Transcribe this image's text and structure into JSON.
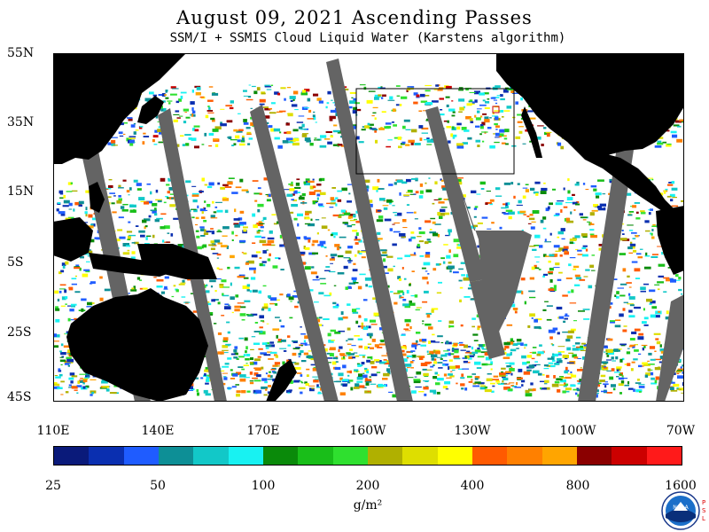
{
  "title": "August 09, 2021  Ascending Passes",
  "subtitle": "SSM/I + SSMIS Cloud Liquid Water (Karstens algorithm)",
  "lat_labels": [
    "55N",
    "35N",
    "15N",
    "5S",
    "25S",
    "45S"
  ],
  "lon_labels": [
    "110E",
    "140E",
    "170E",
    "160W",
    "130W",
    "100W",
    "70W"
  ],
  "colorbar": {
    "tick_labels": [
      "25",
      "50",
      "100",
      "200",
      "400",
      "800",
      "1600"
    ],
    "units": "g/m²",
    "colors": [
      "#0a1a7a",
      "#0a2fb0",
      "#1f5cff",
      "#0d8f96",
      "#12c8c8",
      "#18f2f2",
      "#0a8a0a",
      "#19be19",
      "#2fe02f",
      "#b0b000",
      "#dede00",
      "#ffff00",
      "#ff5a00",
      "#ff8000",
      "#ffa500",
      "#8b0000",
      "#cc0000",
      "#ff1a1a"
    ]
  },
  "map": {
    "land_color": "#000000",
    "ocean_color": "#ffffff",
    "gap_color": "#646464",
    "box_color": "#000000"
  },
  "logo": {
    "label": "NOAA",
    "side_text": "P S L"
  }
}
